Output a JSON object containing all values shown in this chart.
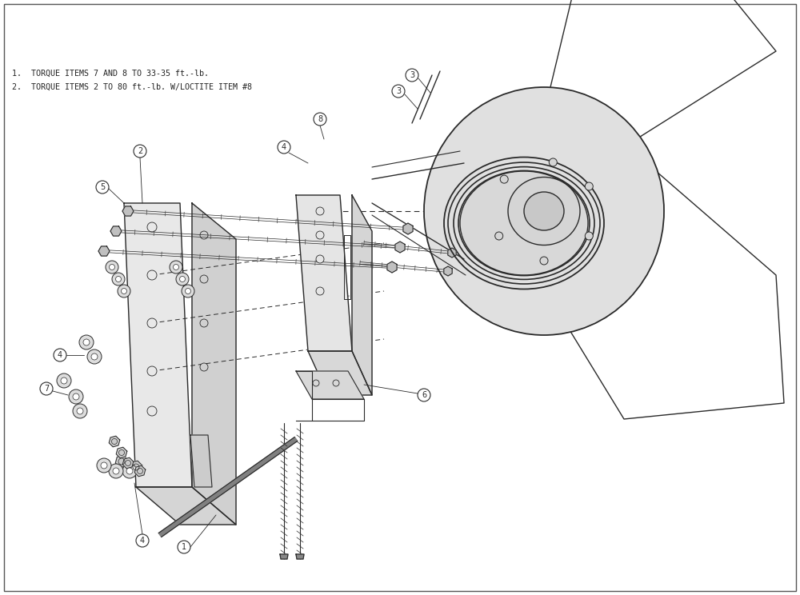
{
  "bg_color": "#ffffff",
  "line_color": "#2a2a2a",
  "note_color": "#222222",
  "notes": [
    "1.  TORQUE ITEMS 7 AND 8 TO 33-35 ft.-lb.",
    "2.  TORQUE ITEMS 2 TO 80 ft.-lb. W/LOCTITE ITEM #8"
  ],
  "label_fontsize": 7.5,
  "note_fontsize": 7.2
}
